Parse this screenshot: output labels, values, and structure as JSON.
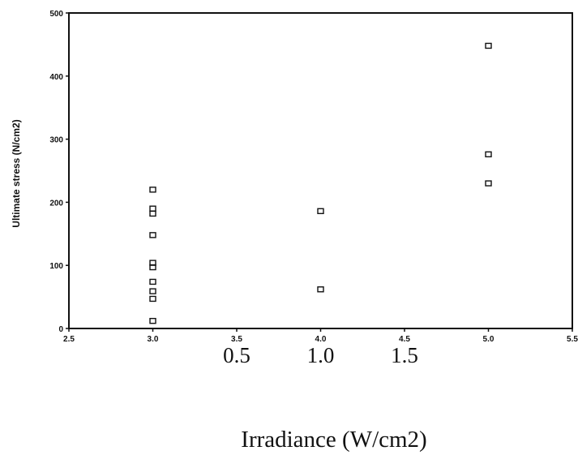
{
  "chart_data": {
    "type": "scatter",
    "title": "",
    "ylabel": "Ultimate stress (N/cm2)",
    "xlabel": "Irradiance (W/cm2)",
    "xlim": [
      2.5,
      5.5
    ],
    "ylim": [
      0,
      500
    ],
    "x_ticks": [
      "2.5",
      "3.0",
      "3.5",
      "4.0",
      "4.5",
      "5.0",
      "5.5"
    ],
    "y_ticks": [
      "0",
      "100",
      "200",
      "300",
      "400",
      "500"
    ],
    "secondary_x_labels": [
      {
        "text": "0.5",
        "at": 3.5
      },
      {
        "text": "1.0",
        "at": 4.0
      },
      {
        "text": "1.5",
        "at": 4.5
      }
    ],
    "grid": false,
    "legend": "none",
    "series": [
      {
        "points": [
          {
            "x": 3.0,
            "y": 220
          },
          {
            "x": 3.0,
            "y": 190
          },
          {
            "x": 3.0,
            "y": 182
          },
          {
            "x": 3.0,
            "y": 148
          },
          {
            "x": 3.0,
            "y": 104
          },
          {
            "x": 3.0,
            "y": 97
          },
          {
            "x": 3.0,
            "y": 74
          },
          {
            "x": 3.0,
            "y": 59
          },
          {
            "x": 3.0,
            "y": 47
          },
          {
            "x": 3.0,
            "y": 12
          },
          {
            "x": 4.0,
            "y": 186
          },
          {
            "x": 4.0,
            "y": 62
          },
          {
            "x": 5.0,
            "y": 448
          },
          {
            "x": 5.0,
            "y": 276
          },
          {
            "x": 5.0,
            "y": 230
          }
        ]
      }
    ]
  }
}
